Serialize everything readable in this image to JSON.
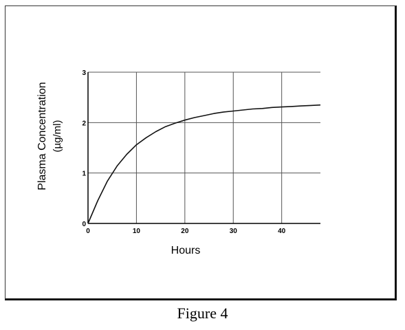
{
  "caption": "Figure 4",
  "chart_data": {
    "type": "line",
    "title": "",
    "xlabel": "Hours",
    "ylabel": "Plasma Concentration",
    "ylabel_unit": "(µg/ml)",
    "xlim": [
      0,
      48
    ],
    "ylim": [
      0,
      3
    ],
    "xticks": [
      0,
      10,
      20,
      30,
      40
    ],
    "yticks": [
      0,
      1,
      2,
      3
    ],
    "grid": true,
    "series": [
      {
        "x": [
          0,
          2,
          4,
          6,
          8,
          10,
          12,
          14,
          16,
          18,
          20,
          22,
          24,
          26,
          28,
          30,
          32,
          34,
          36,
          38,
          40,
          42,
          44,
          46,
          48
        ],
        "y": [
          0,
          0.45,
          0.84,
          1.14,
          1.37,
          1.56,
          1.7,
          1.82,
          1.92,
          1.99,
          2.05,
          2.1,
          2.14,
          2.18,
          2.21,
          2.23,
          2.25,
          2.27,
          2.28,
          2.3,
          2.31,
          2.32,
          2.33,
          2.34,
          2.35
        ]
      }
    ]
  }
}
